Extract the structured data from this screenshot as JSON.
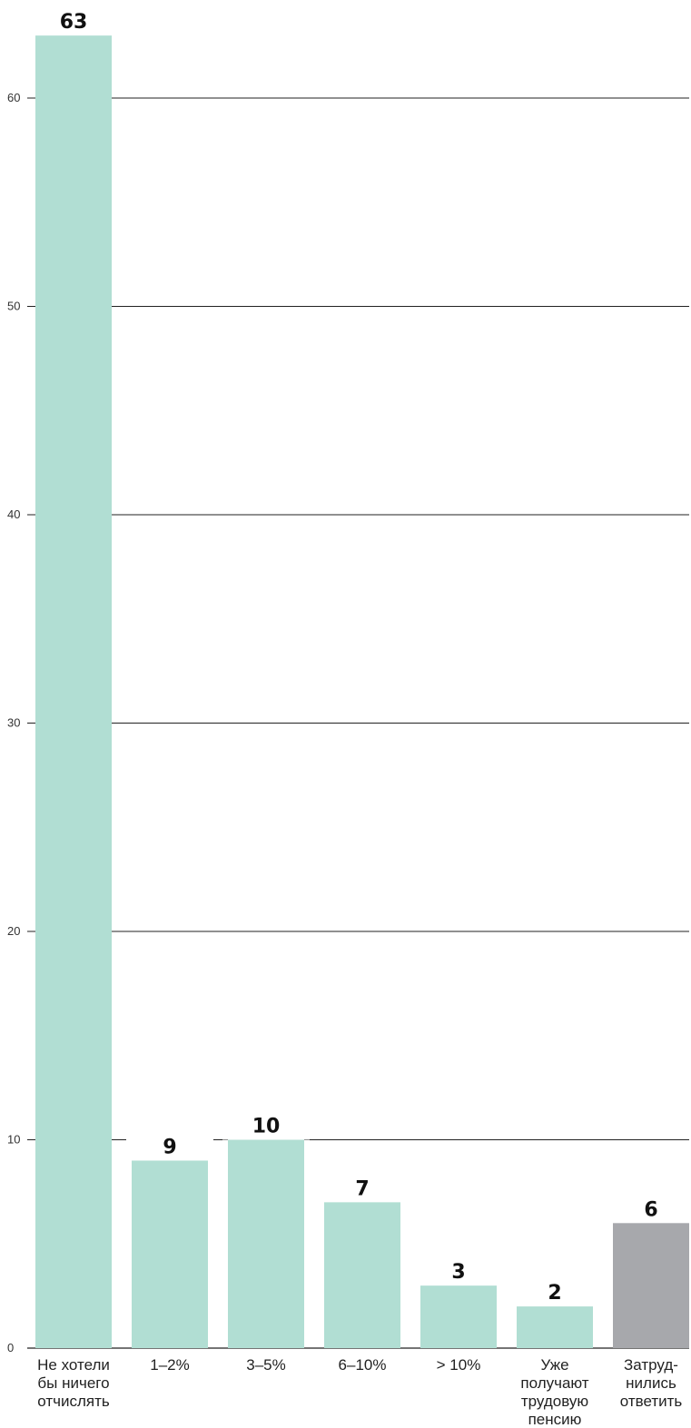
{
  "chart_data": {
    "type": "bar",
    "categories": [
      [
        "Не хотели",
        "бы ничего",
        "отчислять"
      ],
      [
        "1–2%"
      ],
      [
        "3–5%"
      ],
      [
        "6–10%"
      ],
      [
        "> 10%"
      ],
      [
        "Уже",
        "получают",
        "трудовую",
        "пенсию"
      ],
      [
        "Затруд-",
        "нились",
        "ответить"
      ]
    ],
    "values": [
      63,
      9,
      10,
      7,
      3,
      2,
      6
    ],
    "bar_colors": [
      "#b1ded3",
      "#b1ded3",
      "#b1ded3",
      "#b1ded3",
      "#b1ded3",
      "#b1ded3",
      "#a7a8ac"
    ],
    "yticks": [
      0,
      10,
      20,
      30,
      40,
      50,
      60
    ],
    "ylim": [
      0,
      63
    ],
    "grid": true,
    "title": "",
    "xlabel": "",
    "ylabel": ""
  }
}
